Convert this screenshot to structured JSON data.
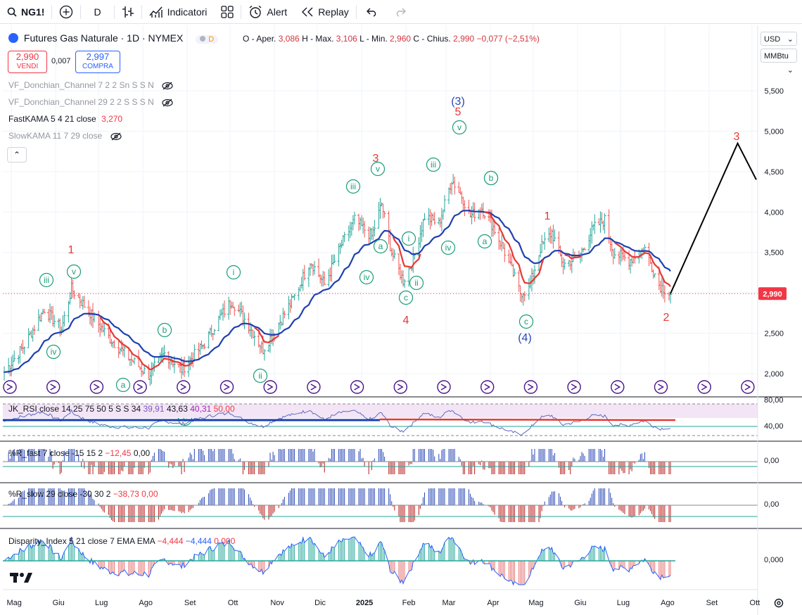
{
  "toolbar": {
    "symbol": "NG1!",
    "interval": "D",
    "indicators": "Indicatori",
    "alert": "Alert",
    "replay": "Replay"
  },
  "header": {
    "title": "Futures Gas Naturale · 1D · NYMEX",
    "badge": "D",
    "o_label": "O - Aper.",
    "o": "3,086",
    "h_label": "H - Max.",
    "h": "3,106",
    "l_label": "L - Min.",
    "l": "2,960",
    "c_label": "C - Chius.",
    "c": "2,990",
    "change": "−0,077 (−2,51%)"
  },
  "trade": {
    "sell_price": "2,990",
    "sell_label": "VENDI",
    "spread": "0,007",
    "buy_price": "2,997",
    "buy_label": "COMPRA"
  },
  "studies": {
    "donchian1": "VF_Donchian_Channel 7 2 2 Sn S S N",
    "donchian2": "VF_Donchian_Channel 29 2 2 S S S N",
    "fastkama": "FastKAMA 5 4 21 close",
    "fastkama_val": "3,270",
    "slowkama": "SlowKAMA 11 7 29 close"
  },
  "controls": {
    "currency": "USD",
    "unit": "MMBtu"
  },
  "price_axis": {
    "ticks": [
      2000,
      2500,
      3000,
      3500,
      4000,
      4500,
      5000,
      5500
    ],
    "tick_labels": [
      "2,000",
      "2,500",
      "3,000",
      "3,500",
      "4,000",
      "4,500",
      "5,000",
      "5,500"
    ],
    "last_label": "2,990"
  },
  "panes": {
    "rsi": {
      "legend": "JK_RSI close 14 25 75 50 5 S S 34",
      "v1": "39,91",
      "v2": "43,63",
      "v3": "40,31",
      "v4": "50,00",
      "ticks": [
        "80,00",
        "40,00"
      ]
    },
    "wr_fast": {
      "legend": "%R_fast 7 close -15 15 2",
      "v1": "−12,45",
      "v2": "0,00",
      "tick": "0,00"
    },
    "wr_slow": {
      "legend": "%R_slow 29 close -30 30 2",
      "v1": "−38,73",
      "v2": "0,00",
      "tick": "0,00"
    },
    "disparity": {
      "legend": "Disparity_Index 5 21 close 7 EMA EMA",
      "v1": "−4,444",
      "v2": "−4,444",
      "v3": "0,000",
      "tick": "0,000"
    }
  },
  "time_axis": [
    "Mag",
    "Giu",
    "Lug",
    "Ago",
    "Set",
    "Ott",
    "Nov",
    "Dic",
    "2025",
    "Feb",
    "Mar",
    "Apr",
    "Mag",
    "Giu",
    "Lug",
    "Ago",
    "Set",
    "Ott"
  ],
  "colors": {
    "up": "#26a69a",
    "down": "#ef5350",
    "kama_fast": "#e53935",
    "kama_slow": "#1e40af",
    "wave_green": "#1b9e77",
    "wave_red": "#e53935",
    "wave_blue": "#2948b5"
  },
  "wave_labels": [
    {
      "t": "iii",
      "k": "g"
    },
    {
      "t": "iv",
      "k": "g"
    },
    {
      "t": "v",
      "k": "g"
    },
    {
      "t": "1",
      "k": "r"
    },
    {
      "t": "a",
      "k": "g"
    },
    {
      "t": "b",
      "k": "g"
    },
    {
      "t": "c",
      "k": "g"
    },
    {
      "t": "i",
      "k": "g"
    },
    {
      "t": "ii",
      "k": "g"
    },
    {
      "t": "iii",
      "k": "g"
    },
    {
      "t": "iv",
      "k": "g"
    },
    {
      "t": "v",
      "k": "g"
    },
    {
      "t": "3",
      "k": "r"
    },
    {
      "t": "b",
      "k": "g"
    },
    {
      "t": "a",
      "k": "g"
    },
    {
      "t": "c",
      "k": "g"
    },
    {
      "t": "4",
      "k": "r"
    },
    {
      "t": "i",
      "k": "g"
    },
    {
      "t": "ii",
      "k": "g"
    },
    {
      "t": "iii",
      "k": "g"
    },
    {
      "t": "iv",
      "k": "g"
    },
    {
      "t": "v",
      "k": "g"
    },
    {
      "t": "5",
      "k": "r"
    },
    {
      "t": "(3)",
      "k": "b"
    },
    {
      "t": "b",
      "k": "g"
    },
    {
      "t": "a",
      "k": "g"
    },
    {
      "t": "c",
      "k": "g"
    },
    {
      "t": "(4)",
      "k": "b"
    },
    {
      "t": "1",
      "k": "r"
    },
    {
      "t": "2",
      "k": "r"
    },
    {
      "t": "3",
      "k": "r"
    }
  ],
  "chart_data": {
    "type": "ohlc",
    "series_name": "NG1!",
    "x_range": [
      "2024-04-25",
      "2025-10-05"
    ],
    "ylim": [
      1800,
      5800
    ],
    "close_path": [
      [
        "2024-04-26",
        2.02
      ],
      [
        "2024-05-10",
        2.35
      ],
      [
        "2024-05-24",
        2.8
      ],
      [
        "2024-06-05",
        2.55
      ],
      [
        "2024-06-12",
        3.05
      ],
      [
        "2024-06-25",
        2.75
      ],
      [
        "2024-07-08",
        2.45
      ],
      [
        "2024-07-22",
        2.2
      ],
      [
        "2024-08-05",
        1.98
      ],
      [
        "2024-08-16",
        2.25
      ],
      [
        "2024-08-28",
        2.05
      ],
      [
        "2024-09-12",
        2.35
      ],
      [
        "2024-09-24",
        2.7
      ],
      [
        "2024-10-02",
        2.9
      ],
      [
        "2024-10-14",
        2.6
      ],
      [
        "2024-10-24",
        2.3
      ],
      [
        "2024-11-05",
        2.65
      ],
      [
        "2024-11-15",
        2.95
      ],
      [
        "2024-11-26",
        3.4
      ],
      [
        "2024-12-06",
        3.1
      ],
      [
        "2024-12-18",
        3.6
      ],
      [
        "2024-12-27",
        3.9
      ],
      [
        "2025-01-08",
        3.7
      ],
      [
        "2025-01-15",
        4.1
      ],
      [
        "2025-01-22",
        3.5
      ],
      [
        "2025-01-30",
        3.15
      ],
      [
        "2025-02-06",
        3.4
      ],
      [
        "2025-02-14",
        3.95
      ],
      [
        "2025-02-24",
        3.85
      ],
      [
        "2025-03-05",
        4.4
      ],
      [
        "2025-03-12",
        4.2
      ],
      [
        "2025-03-18",
        3.95
      ],
      [
        "2025-03-26",
        4.05
      ],
      [
        "2025-04-02",
        3.85
      ],
      [
        "2025-04-10",
        3.55
      ],
      [
        "2025-04-22",
        3.0
      ],
      [
        "2025-04-28",
        3.05
      ],
      [
        "2025-05-06",
        3.55
      ],
      [
        "2025-05-14",
        3.75
      ],
      [
        "2025-05-22",
        3.35
      ],
      [
        "2025-06-02",
        3.45
      ],
      [
        "2025-06-12",
        3.8
      ],
      [
        "2025-06-20",
        3.9
      ],
      [
        "2025-06-26",
        3.5
      ],
      [
        "2025-07-07",
        3.4
      ],
      [
        "2025-07-18",
        3.55
      ],
      [
        "2025-07-28",
        3.1
      ],
      [
        "2025-08-05",
        2.99
      ]
    ],
    "projection": [
      [
        "2025-08-05",
        2.99
      ],
      [
        "2025-09-21",
        4.85
      ],
      [
        "2025-10-04",
        4.4
      ]
    ],
    "last_price": 2.99
  }
}
